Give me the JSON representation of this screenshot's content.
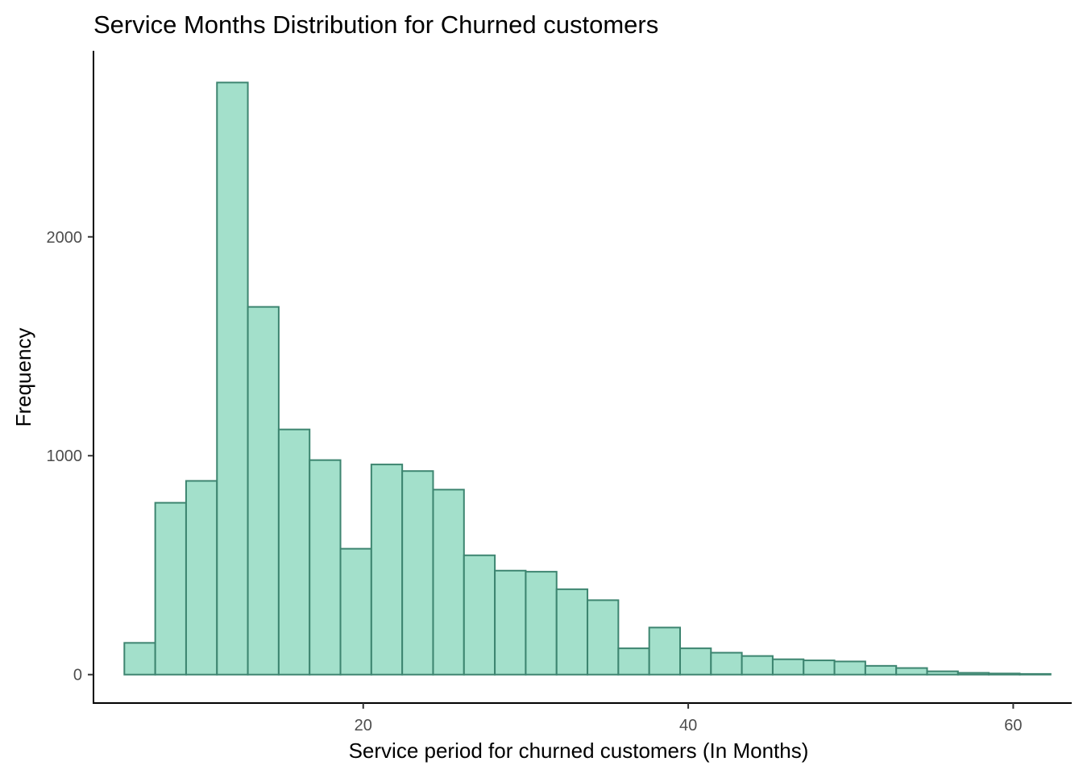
{
  "colors": {
    "bar_fill": "#a3e0cb",
    "bar_stroke": "#3d8570",
    "axis": "#000000",
    "tick_text": "#4d4d4d"
  },
  "chart_data": {
    "type": "histogram",
    "title": "Service Months Distribution for Churned customers",
    "xlabel": "Service period for churned customers (In Months)",
    "ylabel": "Frequency",
    "xlim": [
      3.4,
      63.6
    ],
    "ylim": [
      -130,
      2850
    ],
    "xticks": [
      20,
      40,
      60
    ],
    "yticks": [
      0,
      1000,
      2000
    ],
    "grid": false,
    "legend": "none",
    "bin_width": 1.9,
    "bin_start": 5.3,
    "bins": [
      {
        "x0": 5.3,
        "x1": 7.2,
        "count": 145
      },
      {
        "x0": 7.2,
        "x1": 9.1,
        "count": 785
      },
      {
        "x0": 9.1,
        "x1": 11.0,
        "count": 885
      },
      {
        "x0": 11.0,
        "x1": 12.9,
        "count": 2705
      },
      {
        "x0": 12.9,
        "x1": 14.8,
        "count": 1680
      },
      {
        "x0": 14.8,
        "x1": 16.7,
        "count": 1120
      },
      {
        "x0": 16.7,
        "x1": 18.6,
        "count": 980
      },
      {
        "x0": 18.6,
        "x1": 20.5,
        "count": 575
      },
      {
        "x0": 20.5,
        "x1": 22.4,
        "count": 960
      },
      {
        "x0": 22.4,
        "x1": 24.3,
        "count": 930
      },
      {
        "x0": 24.3,
        "x1": 26.2,
        "count": 845
      },
      {
        "x0": 26.2,
        "x1": 28.1,
        "count": 545
      },
      {
        "x0": 28.1,
        "x1": 30.0,
        "count": 475
      },
      {
        "x0": 30.0,
        "x1": 31.9,
        "count": 470
      },
      {
        "x0": 31.9,
        "x1": 33.8,
        "count": 390
      },
      {
        "x0": 33.8,
        "x1": 35.7,
        "count": 340
      },
      {
        "x0": 35.7,
        "x1": 37.6,
        "count": 120
      },
      {
        "x0": 37.6,
        "x1": 39.5,
        "count": 215
      },
      {
        "x0": 39.5,
        "x1": 41.4,
        "count": 120
      },
      {
        "x0": 41.4,
        "x1": 43.3,
        "count": 100
      },
      {
        "x0": 43.3,
        "x1": 45.2,
        "count": 85
      },
      {
        "x0": 45.2,
        "x1": 47.1,
        "count": 70
      },
      {
        "x0": 47.1,
        "x1": 49.0,
        "count": 65
      },
      {
        "x0": 49.0,
        "x1": 50.9,
        "count": 60
      },
      {
        "x0": 50.9,
        "x1": 52.8,
        "count": 40
      },
      {
        "x0": 52.8,
        "x1": 54.7,
        "count": 30
      },
      {
        "x0": 54.7,
        "x1": 56.6,
        "count": 15
      },
      {
        "x0": 56.6,
        "x1": 58.5,
        "count": 8
      },
      {
        "x0": 58.5,
        "x1": 60.4,
        "count": 5
      },
      {
        "x0": 60.4,
        "x1": 62.3,
        "count": 3
      }
    ]
  }
}
